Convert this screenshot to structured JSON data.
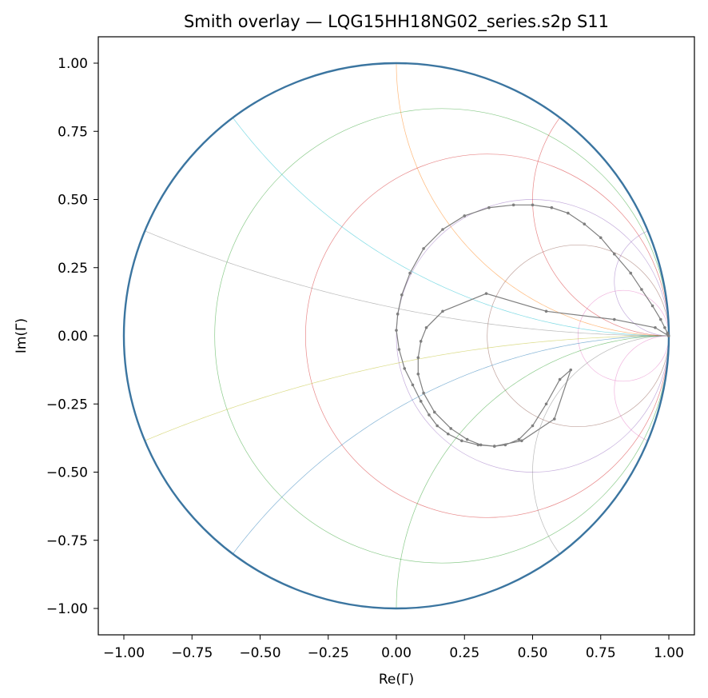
{
  "chart_data": {
    "type": "scatter",
    "title": "Smith overlay — LQG15HH18NG02_series.s2p S11",
    "xlabel": "Re(Γ)",
    "ylabel": "Im(Γ)",
    "xlim": [
      -1.1,
      1.1
    ],
    "ylim": [
      -1.1,
      1.1
    ],
    "xticks": [
      "−1.00",
      "−0.75",
      "−0.50",
      "−0.25",
      "0.00",
      "0.25",
      "0.50",
      "0.75",
      "1.00"
    ],
    "xtick_values": [
      -1.0,
      -0.75,
      -0.5,
      -0.25,
      0.0,
      0.25,
      0.5,
      0.75,
      1.0
    ],
    "yticks": [
      "1.00",
      "0.75",
      "0.50",
      "0.25",
      "0.00",
      "−0.25",
      "−0.50",
      "−0.75",
      "−1.00"
    ],
    "ytick_values": [
      1.0,
      0.75,
      0.5,
      0.25,
      0.0,
      -0.25,
      -0.5,
      -0.75,
      -1.0
    ],
    "grid": false,
    "unit_circle_color": "#3b75a0",
    "resistance_circles": [
      {
        "r": 0.2,
        "color": "#2ca02c"
      },
      {
        "r": 0.5,
        "color": "#d62728"
      },
      {
        "r": 1.0,
        "color": "#9467bd"
      },
      {
        "r": 2.0,
        "color": "#8c564b"
      },
      {
        "r": 5.0,
        "color": "#e377c2"
      }
    ],
    "reactance_arcs": [
      {
        "x": 0.2,
        "color": "#7f7f7f"
      },
      {
        "x": 0.5,
        "color": "#17becf"
      },
      {
        "x": 1.0,
        "color": "#ff7f0e"
      },
      {
        "x": 2.0,
        "color": "#d62728"
      },
      {
        "x": 5.0,
        "color": "#9467bd"
      },
      {
        "x": -0.2,
        "color": "#bcbd22"
      },
      {
        "x": -0.5,
        "color": "#1f77b4"
      },
      {
        "x": -1.0,
        "color": "#2ca02c"
      },
      {
        "x": -2.0,
        "color": "#7f7f7f"
      },
      {
        "x": -5.0,
        "color": "#e377c2"
      }
    ],
    "series": [
      {
        "color": "#7f7f7f",
        "x": [
          0.999,
          0.95,
          0.8,
          0.55,
          0.33,
          0.17,
          0.11,
          0.09,
          0.08,
          0.08,
          0.1,
          0.14,
          0.2,
          0.26,
          0.31,
          0.36,
          0.4,
          0.45,
          0.5,
          0.55,
          0.6,
          0.64,
          0.58,
          0.46,
          0.36,
          0.3,
          0.24,
          0.19,
          0.15,
          0.12,
          0.09,
          0.06,
          0.03,
          0.01,
          0.0,
          0.005,
          0.02,
          0.05,
          0.1,
          0.17,
          0.25,
          0.34,
          0.43,
          0.5,
          0.57,
          0.63,
          0.69,
          0.75,
          0.8,
          0.86,
          0.9,
          0.94,
          0.97,
          0.985,
          0.995,
          0.999
        ],
        "y": [
          0.0,
          0.03,
          0.06,
          0.09,
          0.155,
          0.09,
          0.03,
          -0.02,
          -0.08,
          -0.14,
          -0.21,
          -0.28,
          -0.34,
          -0.38,
          -0.4,
          -0.405,
          -0.4,
          -0.38,
          -0.33,
          -0.25,
          -0.16,
          -0.125,
          -0.305,
          -0.385,
          -0.405,
          -0.4,
          -0.385,
          -0.36,
          -0.33,
          -0.29,
          -0.24,
          -0.18,
          -0.12,
          -0.05,
          0.02,
          0.08,
          0.15,
          0.23,
          0.32,
          0.39,
          0.44,
          0.47,
          0.48,
          0.48,
          0.47,
          0.45,
          0.41,
          0.36,
          0.3,
          0.23,
          0.17,
          0.11,
          0.06,
          0.03,
          0.01,
          0.0
        ]
      }
    ]
  }
}
